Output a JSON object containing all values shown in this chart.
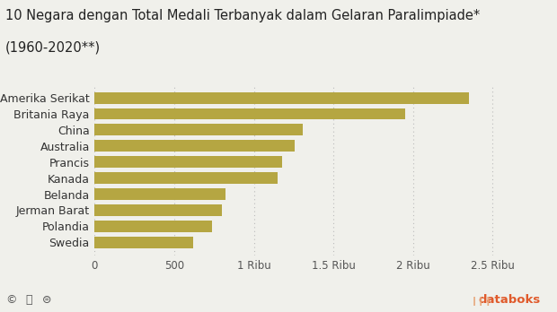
{
  "title_line1": "10 Negara dengan Total Medali Terbanyak dalam Gelaran Paralimpiade*",
  "title_line2": "(1960-2020**)",
  "countries": [
    "Swedia",
    "Polandia",
    "Jerman Barat",
    "Belanda",
    "Kanada",
    "Prancis",
    "Australia",
    "China",
    "Britania Raya",
    "Amerika Serikat"
  ],
  "values": [
    620,
    740,
    800,
    820,
    1150,
    1180,
    1255,
    1305,
    1950,
    2350
  ],
  "bar_color": "#B5A642",
  "bg_color": "#f0f0eb",
  "xlim": [
    0,
    2800
  ],
  "xticks": [
    0,
    500,
    1000,
    1500,
    2000,
    2500
  ],
  "xtick_labels": [
    "0",
    "500",
    "1 Ribu",
    "1.5 Ribu",
    "2 Ribu",
    "2.5 Ribu"
  ],
  "title_fontsize": 10.5,
  "label_fontsize": 9,
  "tick_fontsize": 8.5,
  "footer_left": "©ⓘ⊜",
  "footer_right": "databoks",
  "footer_color_left": "#555555",
  "footer_color_right": "#E05A2B"
}
